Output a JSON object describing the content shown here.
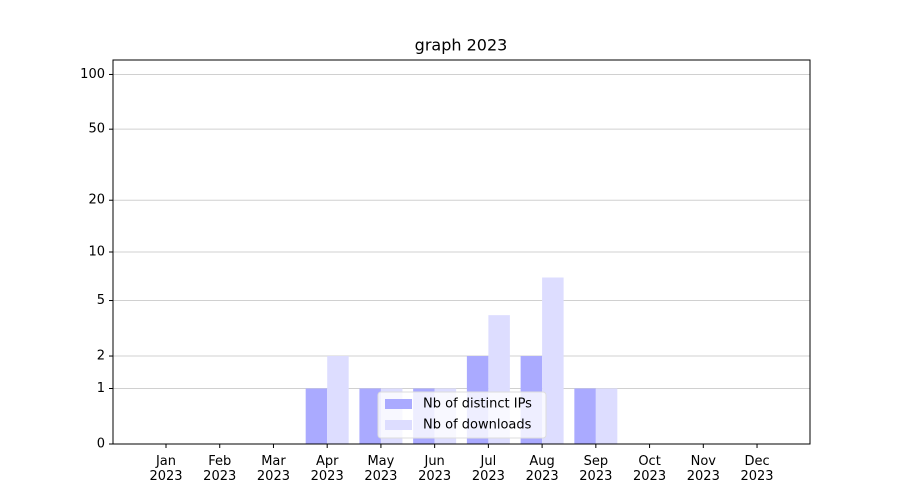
{
  "chart_data": {
    "type": "bar",
    "title": "graph 2023",
    "categories": [
      "Jan\n2023",
      "Feb\n2023",
      "Mar\n2023",
      "Apr\n2023",
      "May\n2023",
      "Jun\n2023",
      "Jul\n2023",
      "Aug\n2023",
      "Sep\n2023",
      "Oct\n2023",
      "Nov\n2023",
      "Dec\n2023"
    ],
    "series": [
      {
        "name": "Nb of distinct IPs",
        "color": "#aaaaff",
        "values": [
          0,
          0,
          0,
          1,
          1,
          1,
          2,
          2,
          1,
          0,
          0,
          0
        ]
      },
      {
        "name": "Nb of downloads",
        "color": "#ddddff",
        "values": [
          0,
          0,
          0,
          2,
          1,
          1,
          4,
          7,
          1,
          0,
          0,
          0
        ]
      }
    ],
    "y_scale": "log1p",
    "ylim": [
      0,
      120
    ],
    "yticks": [
      0,
      1,
      2,
      5,
      10,
      20,
      50,
      100
    ],
    "grid": true,
    "legend": "lower center"
  }
}
